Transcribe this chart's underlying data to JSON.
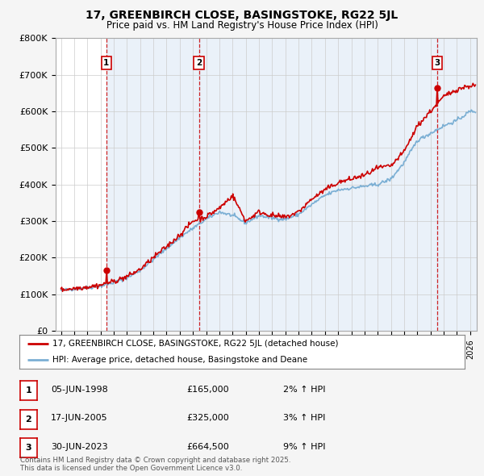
{
  "title_line1": "17, GREENBIRCH CLOSE, BASINGSTOKE, RG22 5JL",
  "title_line2": "Price paid vs. HM Land Registry's House Price Index (HPI)",
  "ylim": [
    0,
    800000
  ],
  "yticks": [
    0,
    100000,
    200000,
    300000,
    400000,
    500000,
    600000,
    700000,
    800000
  ],
  "ytick_labels": [
    "£0",
    "£100K",
    "£200K",
    "£300K",
    "£400K",
    "£500K",
    "£600K",
    "£700K",
    "£800K"
  ],
  "background_color": "#f5f5f5",
  "plot_bg_color": "#ffffff",
  "grid_color": "#cccccc",
  "line_color_red": "#cc0000",
  "line_color_blue": "#7bafd4",
  "shade_color": "#dce8f5",
  "sale_points": [
    {
      "label": 1,
      "year": 1998.44,
      "price": 165000
    },
    {
      "label": 2,
      "year": 2005.46,
      "price": 325000
    },
    {
      "label": 3,
      "year": 2023.49,
      "price": 664500
    }
  ],
  "legend_entries": [
    "17, GREENBIRCH CLOSE, BASINGSTOKE, RG22 5JL (detached house)",
    "HPI: Average price, detached house, Basingstoke and Deane"
  ],
  "table_rows": [
    {
      "num": 1,
      "date": "05-JUN-1998",
      "price": "£165,000",
      "hpi": "2% ↑ HPI"
    },
    {
      "num": 2,
      "date": "17-JUN-2005",
      "price": "£325,000",
      "hpi": "3% ↑ HPI"
    },
    {
      "num": 3,
      "date": "30-JUN-2023",
      "price": "£664,500",
      "hpi": "9% ↑ HPI"
    }
  ],
  "footer": "Contains HM Land Registry data © Crown copyright and database right 2025.\nThis data is licensed under the Open Government Licence v3.0.",
  "xmin": 1994.6,
  "xmax": 2026.5,
  "xticks": [
    1995,
    1996,
    1997,
    1998,
    1999,
    2000,
    2001,
    2002,
    2003,
    2004,
    2005,
    2006,
    2007,
    2008,
    2009,
    2010,
    2011,
    2012,
    2013,
    2014,
    2015,
    2016,
    2017,
    2018,
    2019,
    2020,
    2021,
    2022,
    2023,
    2024,
    2025,
    2026
  ]
}
